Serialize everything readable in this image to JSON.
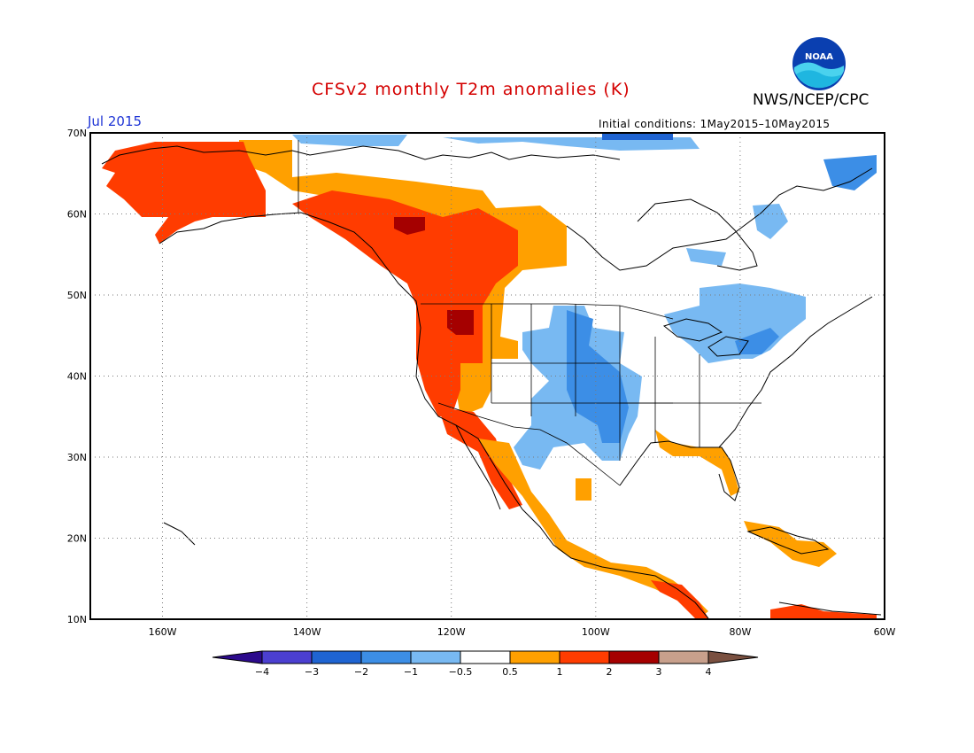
{
  "title": "CFSv2 monthly T2m anomalies (K)",
  "agency": "NWS/NCEP/CPC",
  "logo_text": "NOAA",
  "valid_month": "Jul 2015",
  "initial_conditions": "Initial conditions: 1May2015–10May2015",
  "map": {
    "lon_range": [
      -170,
      -60
    ],
    "lat_range": [
      10,
      70
    ],
    "lat_labels": [
      "70N",
      "60N",
      "50N",
      "40N",
      "30N",
      "20N",
      "10N"
    ],
    "lon_labels": [
      "160W",
      "140W",
      "120W",
      "100W",
      "80W",
      "60W"
    ],
    "grid_lines": "dotted"
  },
  "colorbar": {
    "labels": [
      "−4",
      "−3",
      "−2",
      "−1",
      "−0.5",
      "0.5",
      "1",
      "2",
      "3",
      "4"
    ],
    "colors": [
      "#2c0a8c",
      "#4b3fd0",
      "#1f64d2",
      "#3c8ee6",
      "#78b9f2",
      "#ffffff",
      "#ffa000",
      "#ff3c00",
      "#a50000",
      "#c8a08c",
      "#7a5040"
    ]
  },
  "anomaly_regions": [
    {
      "name": "alaska",
      "level": "1 to 2",
      "color": "#ff3c00"
    },
    {
      "name": "yukon",
      "level": "0.5 to 1",
      "color": "#ffa000"
    },
    {
      "name": "western-canada",
      "level": "1 to 2",
      "color": "#ff3c00"
    },
    {
      "name": "bc-hotspot",
      "level": "2 to 3",
      "color": "#a50000"
    },
    {
      "name": "pacific-northwest",
      "level": "1 to 2",
      "color": "#ff3c00"
    },
    {
      "name": "great-basin",
      "level": "0.5 to 1",
      "color": "#ffa000"
    },
    {
      "name": "central-plains",
      "level": "-1 to -0.5",
      "color": "#78b9f2"
    },
    {
      "name": "southern-plains",
      "level": "-2 to -1",
      "color": "#3c8ee6"
    },
    {
      "name": "great-lakes",
      "level": "-1 to -0.5",
      "color": "#78b9f2"
    },
    {
      "name": "gulf-coast",
      "level": "0.5 to 1",
      "color": "#ffa000"
    },
    {
      "name": "caribbean",
      "level": "0.5 to 1",
      "color": "#ffa000"
    },
    {
      "name": "arctic",
      "level": "-1 to -0.5",
      "color": "#78b9f2"
    }
  ]
}
